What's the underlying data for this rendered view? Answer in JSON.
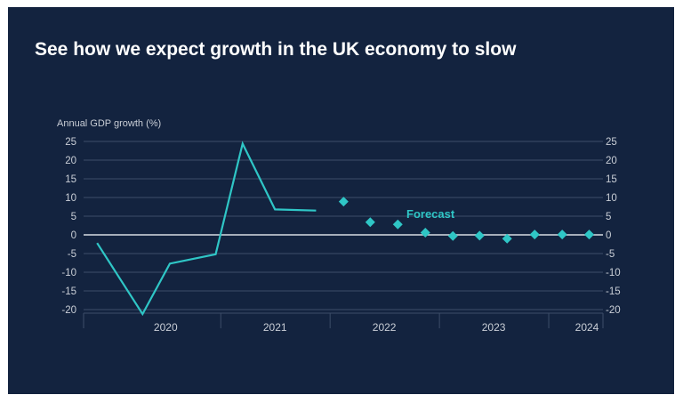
{
  "title": "See how we expect growth in the UK economy to slow",
  "colors": {
    "background": "#13233f",
    "line": "#2fc6c6",
    "marker": "#2fc6c6",
    "text": "#ffffff",
    "axis_text": "#c9ced6",
    "grid": "#3c4d68",
    "zero_line": "#d8dde4"
  },
  "chart_data": {
    "type": "line",
    "ylabel": "Annual GDP growth (%)",
    "ylim": [
      -20,
      25
    ],
    "yticks": [
      25,
      20,
      15,
      10,
      5,
      0,
      -5,
      -10,
      -15,
      -20
    ],
    "grid": true,
    "x_axis": {
      "type": "time",
      "range": [
        "2019-10-01",
        "2024-06-30"
      ],
      "year_labels": [
        "2020",
        "2021",
        "2022",
        "2023",
        "2024"
      ],
      "year_label_dates": [
        "2020-07-01",
        "2021-07-01",
        "2022-07-01",
        "2023-07-01",
        "2024-07-01"
      ],
      "dividers": [
        "2021-01-01",
        "2022-01-01",
        "2023-01-01",
        "2024-01-01"
      ]
    },
    "series": [
      {
        "style": "line",
        "points": [
          {
            "x": "2019-11-15",
            "y": -2.2
          },
          {
            "x": "2020-04-15",
            "y": -21.2
          },
          {
            "x": "2020-07-15",
            "y": -7.7
          },
          {
            "x": "2020-12-15",
            "y": -5.2
          },
          {
            "x": "2021-03-15",
            "y": 24.4
          },
          {
            "x": "2021-07-01",
            "y": 6.8
          },
          {
            "x": "2021-11-15",
            "y": 6.5
          }
        ]
      },
      {
        "style": "markers",
        "label": "Forecast",
        "points": [
          {
            "x": "2022-02-15",
            "y": 8.9
          },
          {
            "x": "2022-05-15",
            "y": 3.4
          },
          {
            "x": "2022-08-15",
            "y": 2.8
          },
          {
            "x": "2022-11-15",
            "y": 0.6
          },
          {
            "x": "2023-02-15",
            "y": -0.3
          },
          {
            "x": "2023-05-15",
            "y": -0.2
          },
          {
            "x": "2023-08-15",
            "y": -1.0
          },
          {
            "x": "2023-11-15",
            "y": 0.1
          },
          {
            "x": "2024-02-15",
            "y": 0.1
          },
          {
            "x": "2024-05-15",
            "y": 0.1
          }
        ]
      }
    ]
  }
}
